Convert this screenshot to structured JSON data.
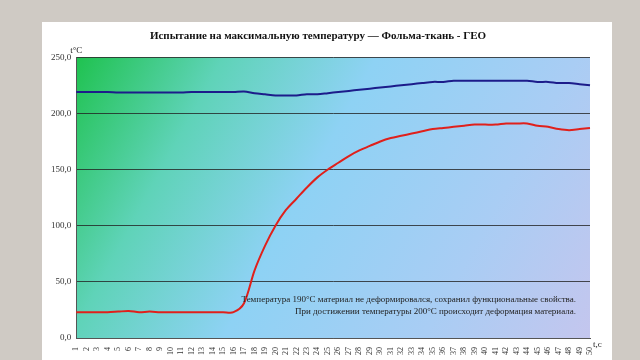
{
  "chart_data": {
    "type": "line",
    "title": "Испытание на максимальную температуру — Фольма-ткань - ГЕО",
    "y_label": "t°C",
    "x_label": "t,c",
    "annotations": [
      "Температура 190°С материал не деформировался, сохранил функциональные свойства.",
      "При достижении температуры 200°С происходит деформация материала."
    ],
    "categories": [
      "1",
      "2",
      "3",
      "4",
      "5",
      "6",
      "7",
      "8",
      "9",
      "10",
      "11",
      "12",
      "13",
      "14",
      "15",
      "16",
      "17",
      "18",
      "19",
      "20",
      "21",
      "22",
      "23",
      "24",
      "25",
      "26",
      "27",
      "28",
      "29",
      "30",
      "31",
      "32",
      "33",
      "34",
      "35",
      "36",
      "37",
      "38",
      "39",
      "40",
      "41",
      "42",
      "43",
      "44",
      "45",
      "46",
      "47",
      "48",
      "49",
      "50"
    ],
    "series": [
      {
        "color": "#1c1c8a",
        "values": [
          219,
          219,
          219,
          219,
          218.5,
          218.5,
          218.5,
          218.5,
          218.5,
          218.5,
          218.5,
          219,
          219,
          219,
          219,
          219,
          219.5,
          218,
          217,
          216,
          216,
          216,
          217,
          217,
          218,
          219,
          220,
          221,
          222,
          223,
          224,
          225,
          226,
          227,
          228,
          228,
          229,
          229,
          229,
          229,
          229,
          229,
          229,
          229,
          228,
          228,
          227,
          227,
          226,
          225
        ]
      },
      {
        "color": "#e0201b",
        "values": [
          23,
          23,
          23,
          23,
          23.5,
          24,
          23,
          23.5,
          23,
          23,
          23,
          23,
          23,
          23,
          23,
          23,
          31,
          60,
          82,
          100,
          114,
          124,
          134,
          143,
          150,
          156,
          162,
          167,
          171,
          175,
          178,
          180,
          182,
          184,
          186,
          187,
          188,
          189,
          190,
          190,
          190,
          191,
          191,
          191,
          189,
          188,
          186,
          185,
          186,
          187
        ]
      }
    ],
    "ylim": [
      0,
      250
    ],
    "yticks": [
      {
        "value": 0,
        "label": "0,0"
      },
      {
        "value": 50,
        "label": "50,0"
      },
      {
        "value": 100,
        "label": "100,0"
      },
      {
        "value": 150,
        "label": "150,0"
      },
      {
        "value": 200,
        "label": "200,0"
      },
      {
        "value": 250,
        "label": "250,0"
      }
    ],
    "grid": true
  }
}
